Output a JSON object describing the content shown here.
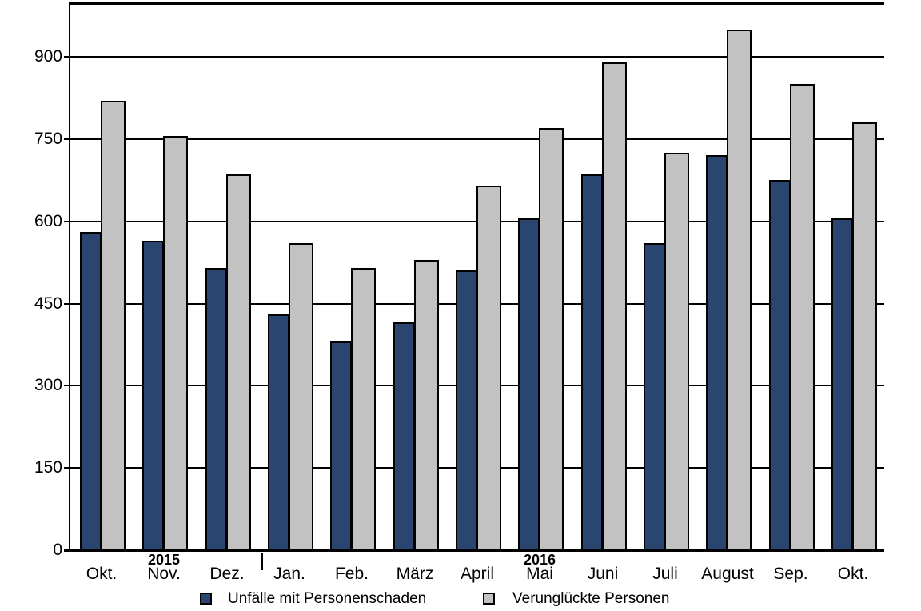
{
  "chart_data": {
    "type": "bar",
    "title": "",
    "xlabel": "",
    "ylabel": "",
    "categories": [
      "Okt.",
      "Nov.",
      "Dez.",
      "Jan.",
      "Feb.",
      "März",
      "April",
      "Mai",
      "Juni",
      "Juli",
      "August",
      "Sep.",
      "Okt."
    ],
    "series": [
      {
        "name": "Unfälle mit Personenschaden",
        "color": "#2b4571",
        "values": [
          580,
          565,
          515,
          430,
          380,
          415,
          510,
          605,
          685,
          560,
          720,
          675,
          605
        ]
      },
      {
        "name": "Verunglückte Personen",
        "color": "#c2c2c2",
        "values": [
          820,
          755,
          685,
          560,
          515,
          530,
          665,
          770,
          890,
          725,
          950,
          850,
          780
        ]
      }
    ],
    "year_labels": [
      {
        "label": "2015",
        "under_category_index": 1
      },
      {
        "label": "2016",
        "under_category_index": 7
      }
    ],
    "year_separator_after_index": 2,
    "y_ticks": [
      0,
      150,
      300,
      450,
      600,
      750,
      900
    ],
    "ylim": [
      0,
      1000
    ],
    "grid": true,
    "legend_position": "bottom",
    "colors": {
      "axis": "#000000",
      "background": "#ffffff",
      "text": "#000000"
    }
  }
}
